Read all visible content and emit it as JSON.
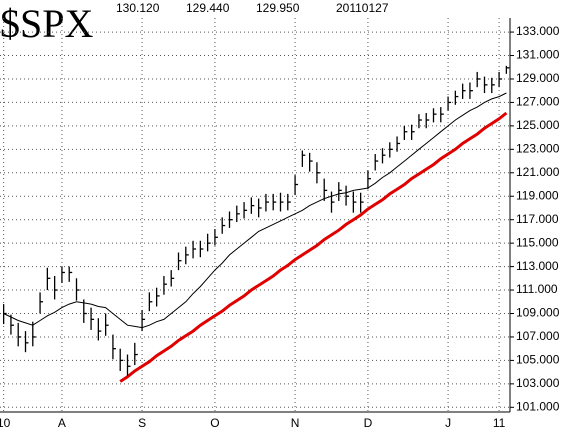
{
  "chart_data": {
    "type": "ohlc",
    "title": "$SPX",
    "header_values": [
      "130.120",
      "129.440",
      "129.950"
    ],
    "date": "20110127",
    "categories": [
      "10",
      null,
      null,
      null,
      null,
      null,
      null,
      null,
      "A",
      null,
      null,
      null,
      null,
      null,
      null,
      null,
      null,
      null,
      null,
      "S",
      null,
      null,
      null,
      null,
      null,
      null,
      null,
      null,
      null,
      "O",
      null,
      null,
      null,
      null,
      null,
      null,
      null,
      null,
      null,
      null,
      "N",
      null,
      null,
      null,
      null,
      null,
      null,
      null,
      null,
      null,
      "D",
      null,
      null,
      null,
      null,
      null,
      null,
      null,
      null,
      null,
      null,
      "J",
      null,
      null,
      null,
      null,
      null,
      null,
      "11",
      null
    ],
    "high": [
      109.8,
      108.9,
      108.2,
      107.5,
      108.3,
      110.8,
      112.9,
      112.2,
      113.0,
      113.0,
      112.0,
      110.2,
      109.5,
      108.6,
      109.0,
      107.2,
      106.0,
      105.5,
      106.5,
      109.3,
      110.8,
      111.2,
      112.2,
      112.7,
      114.2,
      114.7,
      115.2,
      115.2,
      115.8,
      116.2,
      117.2,
      117.7,
      118.2,
      118.5,
      118.9,
      118.8,
      119.2,
      119.2,
      119.3,
      119.2,
      120.8,
      122.9,
      122.7,
      121.9,
      120.5,
      119.4,
      120.2,
      119.9,
      119.4,
      119.3,
      121.2,
      122.6,
      123.1,
      123.6,
      124.1,
      125.0,
      125.1,
      126.0,
      126.1,
      126.5,
      126.6,
      127.5,
      128.0,
      128.6,
      128.7,
      129.6,
      129.2,
      129.1,
      129.6,
      130.12
    ],
    "low": [
      108.1,
      107.2,
      106.2,
      105.7,
      106.2,
      109.0,
      111.0,
      110.2,
      111.6,
      111.7,
      110.1,
      108.2,
      107.6,
      106.7,
      107.1,
      105.1,
      104.1,
      103.7,
      104.6,
      107.5,
      109.2,
      109.6,
      110.6,
      111.3,
      112.7,
      113.2,
      113.7,
      113.8,
      114.3,
      114.8,
      115.8,
      116.3,
      116.8,
      117.1,
      117.5,
      117.2,
      117.7,
      117.8,
      117.7,
      117.8,
      119.1,
      121.5,
      121.1,
      120.1,
      118.6,
      117.6,
      118.6,
      118.2,
      117.6,
      117.6,
      119.6,
      121.2,
      121.8,
      122.3,
      122.8,
      123.8,
      123.8,
      124.8,
      124.8,
      125.3,
      125.3,
      126.3,
      126.8,
      127.3,
      127.3,
      128.3,
      127.8,
      127.8,
      128.3,
      129.44
    ],
    "close": [
      109,
      108,
      107,
      106.5,
      107,
      110,
      112,
      111,
      112.5,
      112.5,
      111,
      109,
      108.5,
      107.5,
      108,
      106,
      105,
      104.5,
      105.5,
      108.5,
      110,
      110.5,
      111.5,
      112,
      113.5,
      114,
      114.5,
      114.5,
      115,
      115.5,
      116.5,
      117,
      117.5,
      117.8,
      118.2,
      118,
      118.5,
      118.5,
      118.5,
      118.5,
      120,
      122.5,
      122,
      121,
      119.5,
      118.5,
      119.5,
      119,
      118.5,
      118.5,
      120.5,
      122,
      122.5,
      123,
      123.5,
      124.5,
      124.5,
      125.5,
      125.5,
      126,
      126,
      127,
      127.5,
      128,
      128,
      129,
      128.5,
      128.5,
      129,
      129.95
    ],
    "color": "#000000",
    "moving_average": {
      "color": "#000000",
      "values": [
        109.0,
        108.7,
        108.4,
        108.2,
        108.0,
        108.4,
        108.8,
        109.1,
        109.5,
        109.8,
        110.0,
        109.9,
        109.8,
        109.6,
        109.5,
        109.0,
        108.5,
        108.0,
        107.9,
        107.8,
        108.0,
        108.3,
        108.5,
        109.0,
        109.5,
        110.0,
        110.7,
        111.3,
        112.0,
        112.7,
        113.3,
        114.0,
        114.5,
        115.0,
        115.5,
        116.0,
        116.3,
        116.6,
        116.9,
        117.2,
        117.5,
        117.8,
        118.2,
        118.5,
        118.8,
        119.0,
        119.2,
        119.3,
        119.5,
        119.6,
        119.7,
        120.1,
        120.6,
        121.0,
        121.5,
        122.0,
        122.5,
        123.0,
        123.5,
        124.0,
        124.5,
        125.0,
        125.5,
        125.9,
        126.3,
        126.6,
        127.0,
        127.3,
        127.5,
        127.8
      ]
    },
    "trendline": {
      "color": "#e00000",
      "values": [
        null,
        null,
        null,
        null,
        null,
        null,
        null,
        null,
        null,
        null,
        null,
        null,
        null,
        null,
        null,
        null,
        103.2,
        103.6,
        104.1,
        104.5,
        104.9,
        105.4,
        105.8,
        106.2,
        106.7,
        107.1,
        107.5,
        108.0,
        108.4,
        108.8,
        109.2,
        109.7,
        110.1,
        110.5,
        111.0,
        111.4,
        111.8,
        112.2,
        112.7,
        113.1,
        113.6,
        114.0,
        114.4,
        114.8,
        115.3,
        115.7,
        116.1,
        116.6,
        117.0,
        117.4,
        117.9,
        118.3,
        118.7,
        119.2,
        119.6,
        120.0,
        120.5,
        120.9,
        121.3,
        121.7,
        122.2,
        122.6,
        123.0,
        123.5,
        123.9,
        124.3,
        124.8,
        125.2,
        125.6,
        126.1
      ]
    },
    "ylim": [
      100.6,
      134.2
    ],
    "yticks": [
      {
        "value": 101,
        "label": "101.000"
      },
      {
        "value": 103,
        "label": "103.000"
      },
      {
        "value": 105,
        "label": "105.000"
      },
      {
        "value": 107,
        "label": "107.000"
      },
      {
        "value": 109,
        "label": "109.000"
      },
      {
        "value": 111,
        "label": "111.000"
      },
      {
        "value": 113,
        "label": "113.000"
      },
      {
        "value": 115,
        "label": "115.000"
      },
      {
        "value": 117,
        "label": "117.000"
      },
      {
        "value": 119,
        "label": "119.000"
      },
      {
        "value": 121,
        "label": "121.000"
      },
      {
        "value": 123,
        "label": "123.000"
      },
      {
        "value": 125,
        "label": "125.000"
      },
      {
        "value": 127,
        "label": "127.000"
      },
      {
        "value": 129,
        "label": "129.000"
      },
      {
        "value": 131,
        "label": "131.000"
      },
      {
        "value": 133,
        "label": "133.000"
      }
    ],
    "grid": true
  }
}
